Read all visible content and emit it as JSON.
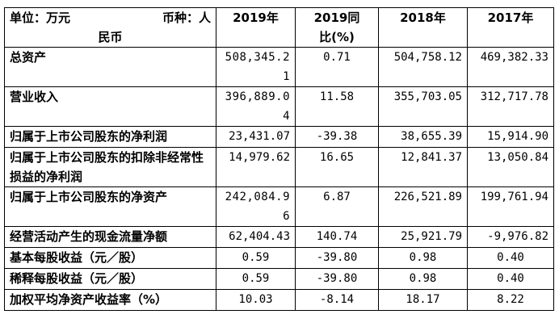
{
  "header": {
    "unit_label": "单位：万元",
    "currency_label": "币种：人",
    "currency_cont": "民币",
    "col_2019": "2019年",
    "col_yoy": "2019同比(%)",
    "col_2018": "2018年",
    "col_2017": "2017年"
  },
  "rows": [
    {
      "label": "总资产",
      "v2019": "508,345.21",
      "yoy": "0.71",
      "v2018": "504,758.12",
      "v2017": "469,382.33"
    },
    {
      "label": "营业收入",
      "v2019": "396,889.04",
      "yoy": "11.58",
      "v2018": "355,703.05",
      "v2017": "312,717.78"
    },
    {
      "label": "归属于上市公司股东的净利润",
      "v2019": "23,431.07",
      "yoy": "-39.38",
      "v2018": "38,655.39",
      "v2017": "15,914.90"
    },
    {
      "label": "归属于上市公司股东的扣除非经常性损益的净利润",
      "v2019": "14,979.62",
      "yoy": "16.65",
      "v2018": "12,841.37",
      "v2017": "13,050.84"
    },
    {
      "label": "归属于上市公司股东的净资产",
      "v2019": "242,084.96",
      "yoy": "6.87",
      "v2018": "226,521.89",
      "v2017": "199,761.94"
    },
    {
      "label": "经营活动产生的现金流量净额",
      "v2019": "62,404.43",
      "yoy": "140.74",
      "v2018": "25,921.79",
      "v2017": "-9,976.82"
    },
    {
      "label": "基本每股收益（元／股）",
      "v2019": "0.59",
      "yoy": "-39.80",
      "v2018": "0.98",
      "v2017": "0.40"
    },
    {
      "label": "稀释每股收益（元／股）",
      "v2019": "0.59",
      "yoy": "-39.80",
      "v2018": "0.98",
      "v2017": "0.40"
    },
    {
      "label": "加权平均净资产收益率（%）",
      "v2019": "10.03",
      "yoy": "-8.14",
      "v2018": "18.17",
      "v2017": "8.22"
    }
  ]
}
